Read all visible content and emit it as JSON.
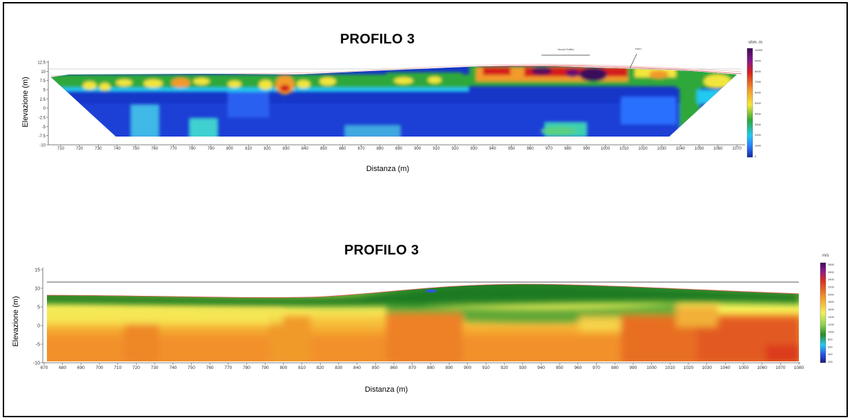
{
  "chart_data": [
    {
      "type": "heatmap",
      "title": "PROFILO 3",
      "xlabel": "Distanza (m)",
      "ylabel": "Elevazione (m)",
      "colorbar_unit": "ohm. m",
      "xlim": [
        703,
        1080
      ],
      "ylim": [
        -10,
        15
      ],
      "x_ticks": [
        "710",
        "720",
        "730",
        "740",
        "750",
        "760",
        "770",
        "780",
        "790",
        "800",
        "810",
        "820",
        "830",
        "840",
        "850",
        "860",
        "870",
        "880",
        "890",
        "900",
        "910",
        "920",
        "930",
        "940",
        "950",
        "960",
        "970",
        "980",
        "990",
        "1000",
        "1010",
        "1020",
        "1030",
        "1040",
        "1050",
        "1060",
        "1070"
      ],
      "y_ticks": [
        "-10",
        "-7.5",
        "-5",
        "-2.5",
        "0",
        "2.5",
        "5",
        "7.5",
        "10",
        "12.5"
      ],
      "colorbar_ticks": [
        "10000",
        "9000",
        "8000",
        "7000",
        "6000",
        "5000",
        "4000",
        "3000",
        "2000",
        "1000",
        "0"
      ],
      "annotations": [
        "Vecchi Edifici",
        "muro"
      ],
      "colors": [
        "#1030c0",
        "#2a7bff",
        "#23c9f0",
        "#2ea83a",
        "#f2e63c",
        "#f29a2a",
        "#d41f1f",
        "#4a0a4a"
      ]
    },
    {
      "type": "heatmap",
      "title": "PROFILO 3",
      "xlabel": "Distanza (m)",
      "ylabel": "Elevazione (m)",
      "colorbar_unit": "m/s",
      "xlim": [
        670,
        1080
      ],
      "ylim": [
        -10,
        15
      ],
      "x_ticks": [
        "670",
        "680",
        "690",
        "700",
        "710",
        "720",
        "730",
        "740",
        "750",
        "760",
        "770",
        "780",
        "790",
        "800",
        "810",
        "820",
        "830",
        "840",
        "850",
        "860",
        "870",
        "880",
        "890",
        "900",
        "910",
        "920",
        "930",
        "940",
        "950",
        "960",
        "970",
        "980",
        "990",
        "1000",
        "1010",
        "1020",
        "1030",
        "1040",
        "1050",
        "1060",
        "1070",
        "1080"
      ],
      "y_ticks": [
        "-10",
        "-5",
        "0",
        "5",
        "10",
        "15"
      ],
      "colorbar_ticks": [
        "2800",
        "2600",
        "2400",
        "2200",
        "2000",
        "1800",
        "1600",
        "1400",
        "1200",
        "1000",
        "800",
        "600",
        "400",
        "200"
      ],
      "colors": [
        "#2a8a2a",
        "#8fd14f",
        "#f5ef5a",
        "#f7c640",
        "#f29a2a",
        "#e06a20",
        "#d93020"
      ]
    }
  ]
}
